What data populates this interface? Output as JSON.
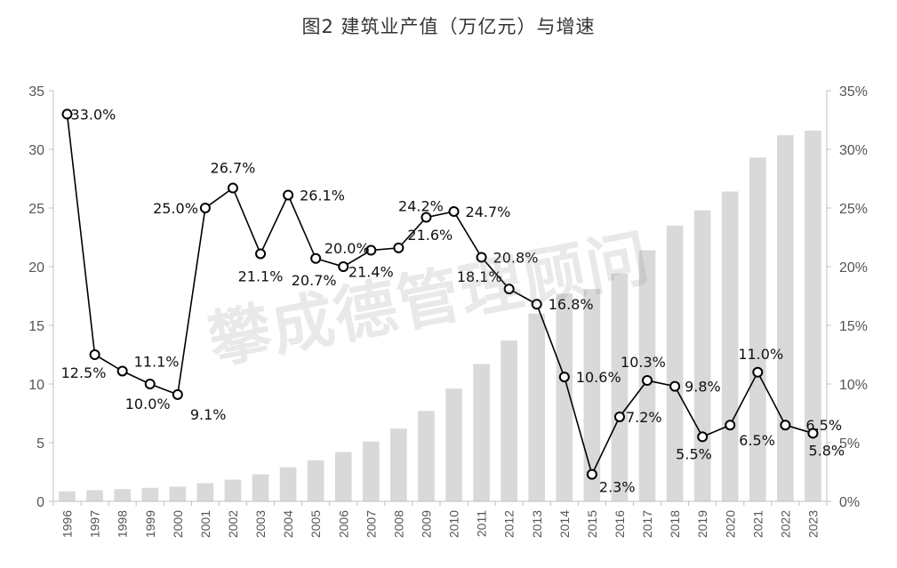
{
  "chart_data": {
    "type": "bar+line",
    "title": "图2 建筑业产值（万亿元）与增速",
    "categories": [
      "1996",
      "1997",
      "1998",
      "1999",
      "2000",
      "2001",
      "2002",
      "2003",
      "2004",
      "2005",
      "2006",
      "2007",
      "2008",
      "2009",
      "2010",
      "2011",
      "2012",
      "2013",
      "2014",
      "2015",
      "2016",
      "2017",
      "2018",
      "2019",
      "2020",
      "2021",
      "2022",
      "2023"
    ],
    "series": [
      {
        "kind": "bar",
        "axis": "left",
        "color": "#d9d9d9",
        "values": [
          0.85,
          0.95,
          1.05,
          1.15,
          1.25,
          1.55,
          1.85,
          2.3,
          2.9,
          3.5,
          4.2,
          5.1,
          6.2,
          7.7,
          9.6,
          11.7,
          13.7,
          16.0,
          17.7,
          18.1,
          19.4,
          21.4,
          23.5,
          24.8,
          26.4,
          29.3,
          31.2,
          31.6
        ]
      },
      {
        "kind": "line",
        "axis": "right",
        "color": "#000000",
        "values": [
          33.0,
          12.5,
          11.1,
          10.0,
          9.1,
          25.0,
          26.7,
          21.1,
          26.1,
          20.7,
          20.0,
          21.4,
          21.6,
          24.2,
          24.7,
          20.8,
          18.1,
          16.8,
          10.6,
          2.3,
          7.2,
          10.3,
          9.8,
          5.5,
          6.5,
          11.0,
          6.5,
          5.8
        ],
        "labels": [
          "33.0%",
          "12.5%",
          "11.1%",
          "10.0%",
          "9.1%",
          "25.0%",
          "26.7%",
          "21.1%",
          "26.1%",
          "20.7%",
          "20.0%",
          "21.4%",
          "21.6%",
          "24.2%",
          "24.7%",
          "20.8%",
          "18.1%",
          "16.8%",
          "10.6%",
          "2.3%",
          "7.2%",
          "10.3%",
          "9.8%",
          "5.5%",
          "6.5%",
          "11.0%",
          "6.5%",
          "5.8%"
        ]
      }
    ],
    "left_axis": {
      "ylim": [
        0,
        35
      ],
      "ticks": [
        "0",
        "5",
        "10",
        "15",
        "20",
        "25",
        "30",
        "35"
      ]
    },
    "right_axis": {
      "ylim": [
        0,
        35
      ],
      "ticks": [
        "0%",
        "5%",
        "10%",
        "15%",
        "20%",
        "25%",
        "30%",
        "35%"
      ]
    },
    "grid": false,
    "legend": "none",
    "watermark": "攀成德管理顾问"
  }
}
